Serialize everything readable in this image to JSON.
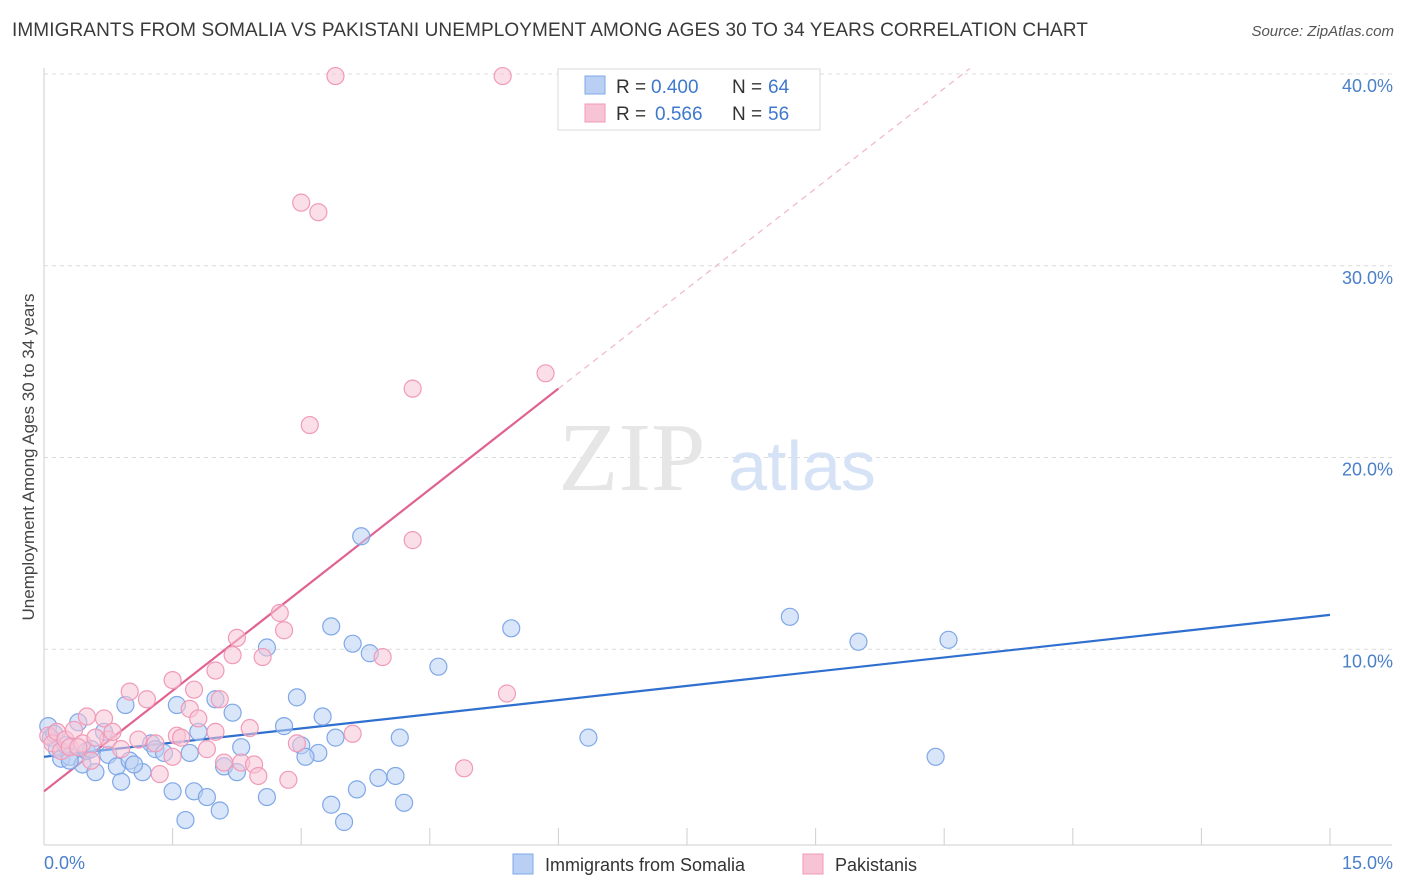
{
  "header": {
    "title": "IMMIGRANTS FROM SOMALIA VS PAKISTANI UNEMPLOYMENT AMONG AGES 30 TO 34 YEARS CORRELATION CHART",
    "source": "Source: ZipAtlas.com"
  },
  "watermark": {
    "zip": "ZIP",
    "atlas": "atlas"
  },
  "chart_data": {
    "type": "scatter",
    "title": "IMMIGRANTS FROM SOMALIA VS PAKISTANI UNEMPLOYMENT AMONG AGES 30 TO 34 YEARS CORRELATION CHART",
    "xlabel": "",
    "ylabel": "Unemployment Among Ages 30 to 34 years",
    "xlim": [
      0,
      15
    ],
    "ylim": [
      0,
      40
    ],
    "x_tick_labels": [
      "0.0%",
      "15.0%"
    ],
    "y_ticks": [
      10,
      20,
      30,
      40
    ],
    "y_tick_labels": [
      "10.0%",
      "20.0%",
      "30.0%",
      "40.0%"
    ],
    "grid": true,
    "legend": [
      {
        "r_label": "R = ",
        "r_value": "0.400",
        "n_label": "N = ",
        "n_value": "64"
      },
      {
        "r_label": "R = ",
        "r_value": "0.566",
        "n_label": "N = ",
        "n_value": "56"
      }
    ],
    "series": [
      {
        "name": "Immigrants from Somalia",
        "color": "#7fa8e8",
        "fill": "#b9cff3",
        "trend_color": "#2f6fcf",
        "trend": {
          "x0": 0,
          "y0": 4.6,
          "x1": 15,
          "y1": 12.0
        },
        "points": [
          [
            0.05,
            6.2
          ],
          [
            0.08,
            5.6
          ],
          [
            0.12,
            5.8
          ],
          [
            0.15,
            5.0
          ],
          [
            0.2,
            4.5
          ],
          [
            0.25,
            5.2
          ],
          [
            0.3,
            4.6
          ],
          [
            0.4,
            6.4
          ],
          [
            0.45,
            4.2
          ],
          [
            0.5,
            4.9
          ],
          [
            0.6,
            3.8
          ],
          [
            0.7,
            5.9
          ],
          [
            0.75,
            4.7
          ],
          [
            0.85,
            4.1
          ],
          [
            0.95,
            7.3
          ],
          [
            1.0,
            4.4
          ],
          [
            1.15,
            3.8
          ],
          [
            1.25,
            5.3
          ],
          [
            1.3,
            5.0
          ],
          [
            1.4,
            4.8
          ],
          [
            1.5,
            2.8
          ],
          [
            1.55,
            7.3
          ],
          [
            1.65,
            1.3
          ],
          [
            1.7,
            4.8
          ],
          [
            1.75,
            2.8
          ],
          [
            1.9,
            2.5
          ],
          [
            2.0,
            7.6
          ],
          [
            2.05,
            1.8
          ],
          [
            2.1,
            4.1
          ],
          [
            2.2,
            6.9
          ],
          [
            2.25,
            3.8
          ],
          [
            2.3,
            5.1
          ],
          [
            2.6,
            10.3
          ],
          [
            2.6,
            2.5
          ],
          [
            2.8,
            6.2
          ],
          [
            2.95,
            7.7
          ],
          [
            3.0,
            5.2
          ],
          [
            3.2,
            4.8
          ],
          [
            3.25,
            6.7
          ],
          [
            3.35,
            11.4
          ],
          [
            3.4,
            5.6
          ],
          [
            3.35,
            2.1
          ],
          [
            3.5,
            1.2
          ],
          [
            3.6,
            10.5
          ],
          [
            3.65,
            2.9
          ],
          [
            3.7,
            16.1
          ],
          [
            3.8,
            10.0
          ],
          [
            3.9,
            3.5
          ],
          [
            4.1,
            3.6
          ],
          [
            4.15,
            5.6
          ],
          [
            4.2,
            2.2
          ],
          [
            4.6,
            9.3
          ],
          [
            5.45,
            11.3
          ],
          [
            6.35,
            5.6
          ],
          [
            8.7,
            11.9
          ],
          [
            9.5,
            10.6
          ],
          [
            10.55,
            10.7
          ],
          [
            10.4,
            4.6
          ],
          [
            0.9,
            3.3
          ],
          [
            1.05,
            4.2
          ],
          [
            0.3,
            4.4
          ],
          [
            0.55,
            5.0
          ],
          [
            1.8,
            5.9
          ],
          [
            3.05,
            4.6
          ]
        ]
      },
      {
        "name": "Pakistanis",
        "color": "#f19ab8",
        "fill": "#f7c4d5",
        "trend_color": "#e06292",
        "trend": {
          "x0": 0,
          "y0": 2.8,
          "x1": 6.0,
          "y1": 23.8
        },
        "trend_extension": {
          "x0": 6.0,
          "y0": 23.8,
          "x1": 10.8,
          "y1": 40.5
        },
        "points": [
          [
            0.05,
            5.7
          ],
          [
            0.1,
            5.3
          ],
          [
            0.15,
            5.9
          ],
          [
            0.2,
            4.9
          ],
          [
            0.25,
            5.5
          ],
          [
            0.3,
            5.1
          ],
          [
            0.35,
            6.0
          ],
          [
            0.45,
            5.3
          ],
          [
            0.5,
            6.7
          ],
          [
            0.55,
            4.4
          ],
          [
            0.7,
            6.6
          ],
          [
            0.75,
            5.5
          ],
          [
            0.8,
            5.9
          ],
          [
            1.0,
            8.0
          ],
          [
            1.1,
            5.5
          ],
          [
            1.2,
            7.6
          ],
          [
            1.3,
            5.3
          ],
          [
            1.35,
            3.7
          ],
          [
            1.5,
            4.6
          ],
          [
            1.5,
            8.6
          ],
          [
            1.55,
            5.7
          ],
          [
            1.7,
            7.1
          ],
          [
            1.75,
            8.1
          ],
          [
            1.8,
            6.6
          ],
          [
            1.9,
            5.0
          ],
          [
            2.0,
            9.1
          ],
          [
            2.0,
            5.9
          ],
          [
            2.1,
            4.3
          ],
          [
            2.2,
            9.9
          ],
          [
            2.25,
            10.8
          ],
          [
            2.3,
            4.3
          ],
          [
            2.4,
            6.1
          ],
          [
            2.45,
            4.2
          ],
          [
            2.5,
            3.6
          ],
          [
            2.55,
            9.8
          ],
          [
            2.75,
            12.1
          ],
          [
            2.8,
            11.2
          ],
          [
            2.85,
            3.4
          ],
          [
            2.95,
            5.3
          ],
          [
            3.0,
            33.5
          ],
          [
            3.1,
            21.9
          ],
          [
            3.2,
            33.0
          ],
          [
            3.4,
            40.1
          ],
          [
            3.6,
            5.8
          ],
          [
            3.95,
            9.8
          ],
          [
            4.3,
            15.9
          ],
          [
            4.3,
            23.8
          ],
          [
            4.9,
            4.0
          ],
          [
            5.35,
            40.1
          ],
          [
            5.4,
            7.9
          ],
          [
            5.85,
            24.6
          ],
          [
            0.6,
            5.6
          ],
          [
            0.9,
            5.0
          ],
          [
            1.6,
            5.6
          ],
          [
            2.05,
            7.6
          ],
          [
            0.4,
            5.1
          ]
        ]
      }
    ]
  }
}
